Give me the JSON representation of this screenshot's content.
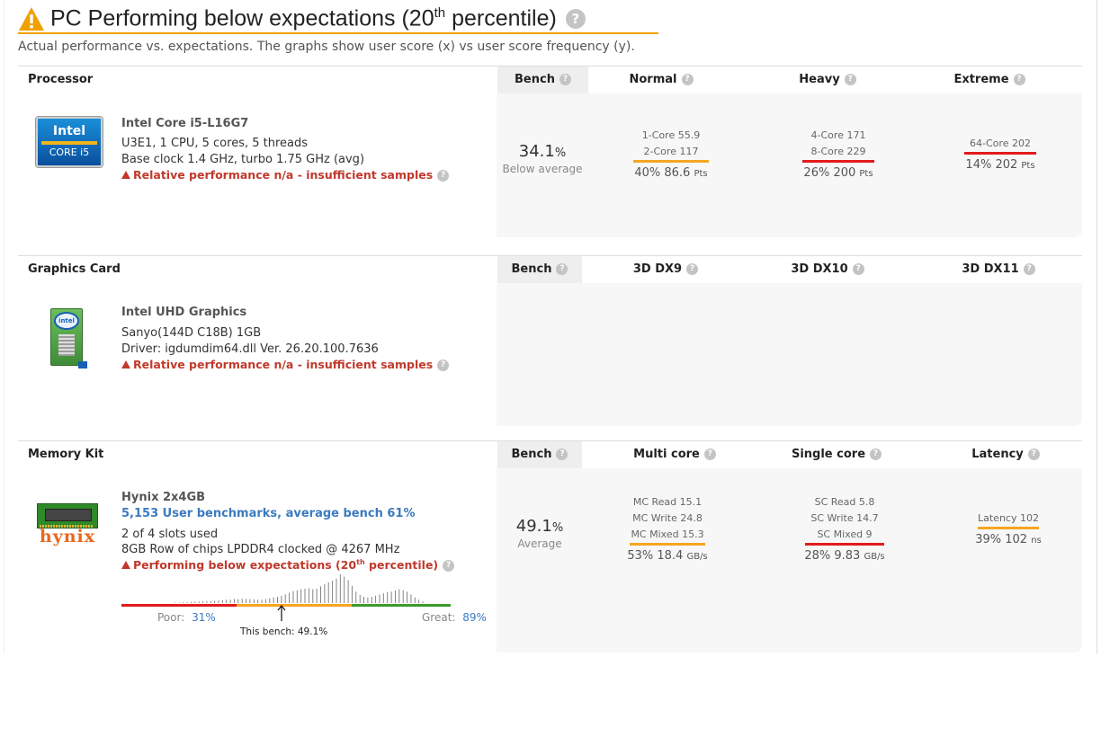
{
  "header": {
    "title_main": "PC Performing below expectations (20",
    "title_sup": "th",
    "title_tail": " percentile)",
    "subtitle": "Actual performance vs. expectations. The graphs show user score (x) vs user score frequency (y)."
  },
  "colors": {
    "warning": "#f0a000",
    "orange_bar": "#f5a623",
    "red_bar": "#e31b1b",
    "poor": "#e31b1b",
    "great": "#3c9a2a",
    "link": "#3b7bbf"
  },
  "processor": {
    "section_label": "Processor",
    "bench_label": "Bench",
    "cols": [
      "Normal",
      "Heavy",
      "Extreme"
    ],
    "logo_line1": "Intel",
    "logo_line2": "CORE i5",
    "name": "Intel Core i5-L16G7",
    "spec1": "U3E1, 1 CPU, 5 cores, 5 threads",
    "spec2": "Base clock 1.4 GHz, turbo 1.75 GHz (avg)",
    "warning": "Relative performance n/a - insufficient samples",
    "bench_value": "34.1",
    "bench_unit": "%",
    "bench_desc": "Below average",
    "normal": {
      "sub1": "1-Core 55.9",
      "sub2": "2-Core 117",
      "res_pct": "40% 86.6",
      "res_unit": "Pts"
    },
    "heavy": {
      "sub1": "4-Core 171",
      "sub2": "8-Core 229",
      "res_pct": "26% 200",
      "res_unit": "Pts"
    },
    "extreme": {
      "sub1": "64-Core 202",
      "res_pct": "14% 202",
      "res_unit": "Pts"
    }
  },
  "graphics": {
    "section_label": "Graphics Card",
    "bench_label": "Bench",
    "cols": [
      "3D DX9",
      "3D DX10",
      "3D DX11"
    ],
    "name": "Intel UHD Graphics",
    "spec1": "Sanyo(144D C18B) 1GB",
    "spec2": "Driver: igdumdim64.dll Ver. 26.20.100.7636",
    "warning": "Relative performance n/a - insufficient samples",
    "logo_text": "intel"
  },
  "memory": {
    "section_label": "Memory Kit",
    "bench_label": "Bench",
    "cols": [
      "Multi core",
      "Single core",
      "Latency"
    ],
    "logo_text": "hynix",
    "name": "Hynix 2x4GB",
    "link": "5,153 User benchmarks, average bench 61%",
    "spec1": "2 of 4 slots used",
    "spec2": "8GB Row of chips LPDDR4 clocked @ 4267 MHz",
    "warning_main": "Performing below expectations (20",
    "warning_sup": "th",
    "warning_tail": " percentile)",
    "bench_value": "49.1",
    "bench_unit": "%",
    "bench_desc": "Average",
    "multi": {
      "sub1": "MC Read 15.1",
      "sub2": "MC Write 24.8",
      "sub3": "MC Mixed 15.3",
      "res_pct": "53% 18.4",
      "res_unit": "GB/s"
    },
    "single": {
      "sub1": "SC Read 5.8",
      "sub2": "SC Write 14.7",
      "sub3": "SC Mixed 9",
      "res_pct": "28% 9.83",
      "res_unit": "GB/s"
    },
    "latency": {
      "sub1": "Latency 102",
      "res_pct": "39% 102",
      "res_unit": "ns"
    },
    "dist": {
      "poor_label": "Poor:",
      "poor_value": "31%",
      "great_label": "Great:",
      "great_value": "89%",
      "bench_label": "This bench: 49.1%",
      "bench_pos": 0.49,
      "freq": [
        0.02,
        0.02,
        0.03,
        0.03,
        0.04,
        0.05,
        0.05,
        0.06,
        0.07,
        0.07,
        0.08,
        0.09,
        0.1,
        0.12,
        0.12,
        0.14,
        0.14,
        0.15,
        0.15,
        0.14,
        0.13,
        0.12,
        0.12,
        0.14,
        0.17,
        0.2,
        0.22,
        0.25,
        0.3,
        0.36,
        0.42,
        0.45,
        0.48,
        0.5,
        0.52,
        0.48,
        0.5,
        0.58,
        0.66,
        0.72,
        0.78,
        0.85,
        1.0,
        0.92,
        0.8,
        0.6,
        0.4,
        0.28,
        0.22,
        0.2,
        0.22,
        0.26,
        0.3,
        0.34,
        0.38,
        0.4,
        0.44,
        0.48,
        0.45,
        0.4,
        0.3,
        0.2,
        0.12,
        0.06
      ]
    }
  }
}
